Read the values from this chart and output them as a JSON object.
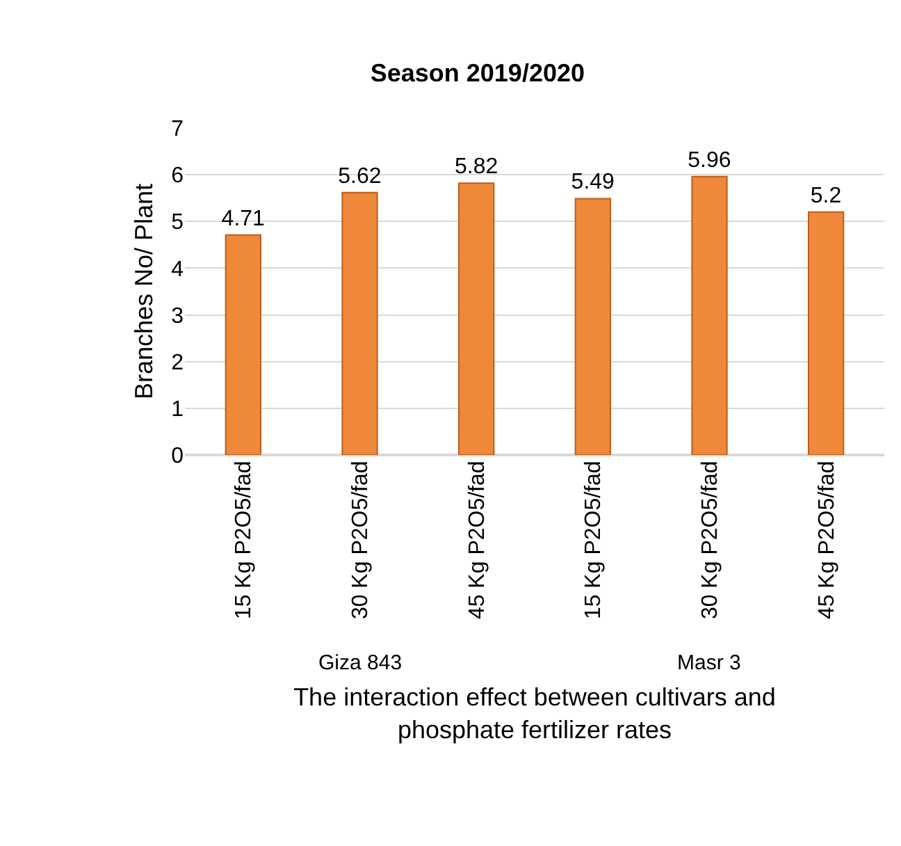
{
  "chart_data": {
    "type": "bar",
    "title": "Season 2019/2020",
    "xlabel": "The interaction effect between cultivars and phosphate fertilizer rates",
    "ylabel": "Branches No/ Plant",
    "categories": [
      "15 Kg P2O5/fad",
      "30 Kg P2O5/fad",
      "45 Kg P2O5/fad",
      "15 Kg P2O5/fad",
      "30 Kg P2O5/fad",
      "45 Kg P2O5/fad"
    ],
    "values": [
      4.71,
      5.62,
      5.82,
      5.49,
      5.96,
      5.2
    ],
    "color": "#f0883a",
    "ylim": [
      0,
      7
    ],
    "yticks": [
      0,
      1,
      2,
      3,
      4,
      5,
      6,
      7
    ],
    "grid": "y",
    "data_labels": true,
    "legend": false,
    "annotations": [
      "Giza 843",
      "Masr 3"
    ]
  }
}
